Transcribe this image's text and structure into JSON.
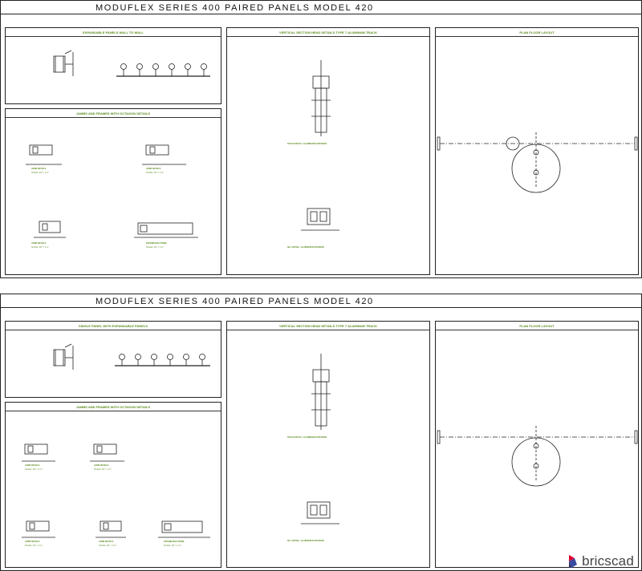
{
  "sheets": [
    {
      "title": "MODUFLEX SERIES 400  PAIRED PANELS MODEL 420",
      "panels": {
        "top_left": "EXPANDABLE PANELS WALL TO WALL",
        "bottom_left": "JAMBS AND FRAMES WITH OCTAGON DETAILS",
        "middle": "VERTICAL SECTION HEAD DETAILS TYPE 7 ALUMINUM TRACK",
        "right": "PLAN FLOOR LAYOUT"
      },
      "jambs": [
        {
          "label": "JAMB DETAILS",
          "sub": "SCALE: 3/4\" = 1'-0\""
        },
        {
          "label": "JAMB DETAILS",
          "sub": "SCALE: 3/4\" = 1'-0\""
        },
        {
          "label": "JAMB DETAILS",
          "sub": "SCALE: 3/4\" = 1'-0\""
        },
        {
          "label": "EXPANDABLE PANEL",
          "sub": "SCALE: 3/4\" = 1'-0\""
        }
      ],
      "head_caption": "TRACK DETAIL / ALUMINUM EXTRUSION",
      "sill_caption": "SILL DETAIL / ALUMINUM EXTRUSION"
    },
    {
      "title": "MODUFLEX SERIES 400  PAIRED PANELS MODEL 420",
      "panels": {
        "top_left": "SINGLE PANEL WITH EXPANDABLE PANELS",
        "bottom_left": "JAMBS AND FRAMES WITH OCTAGON DETAILS",
        "middle": "VERTICAL SECTION HEAD DETAILS TYPE 7 ALUMINUM TRACK",
        "right": "PLAN FLOOR LAYOUT"
      },
      "jambs": [
        {
          "label": "JAMB DETAILS",
          "sub": "SCALE: 3/4\" = 1'-0\""
        },
        {
          "label": "JAMB DETAILS",
          "sub": "SCALE: 3/4\" = 1'-0\""
        },
        {
          "label": "JAMB DETAILS",
          "sub": "SCALE: 3/4\" = 1'-0\""
        },
        {
          "label": "JAMB DETAILS",
          "sub": "SCALE: 3/4\" = 1'-0\""
        },
        {
          "label": "EXPANDABLE PANEL",
          "sub": "SCALE: 3/4\" = 1'-0\""
        }
      ],
      "head_caption": "TRACK DETAIL / ALUMINUM EXTRUSION",
      "sill_caption": "SILL DETAIL / ALUMINUM EXTRUSION"
    }
  ],
  "brand": {
    "name": "bricscad",
    "colors": [
      "#e4002b",
      "#3a4a9f",
      "#2a2a5a"
    ]
  },
  "colors": {
    "label_green": "#5a8a1e",
    "line": "#222222"
  }
}
